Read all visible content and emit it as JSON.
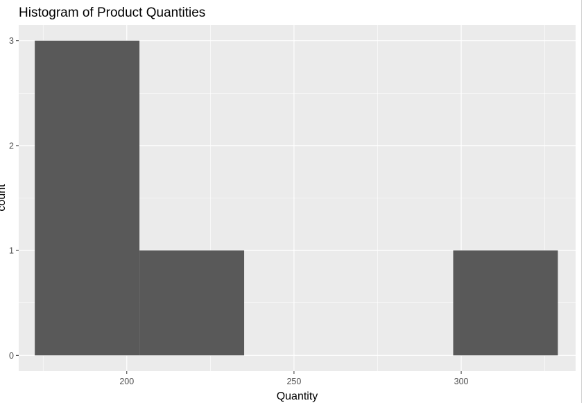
{
  "chart_data": {
    "type": "bar",
    "title": "Histogram of Product Quantities",
    "xlabel": "Quantity",
    "ylabel": "count",
    "xlim": [
      167.7,
      334.2
    ],
    "ylim": [
      -0.15,
      3.15
    ],
    "x_ticks": [
      200,
      250,
      300
    ],
    "y_ticks": [
      0,
      1,
      2,
      3
    ],
    "bins": [
      {
        "x0": 172.5,
        "x1": 203.8,
        "count": 3
      },
      {
        "x0": 203.8,
        "x1": 235.1,
        "count": 1
      },
      {
        "x0": 235.1,
        "x1": 266.4,
        "count": 0
      },
      {
        "x0": 266.4,
        "x1": 297.6,
        "count": 0
      },
      {
        "x0": 297.6,
        "x1": 328.9,
        "count": 1
      }
    ],
    "bar_color": "#595959",
    "panel_color": "#ebebeb",
    "grid": true
  }
}
